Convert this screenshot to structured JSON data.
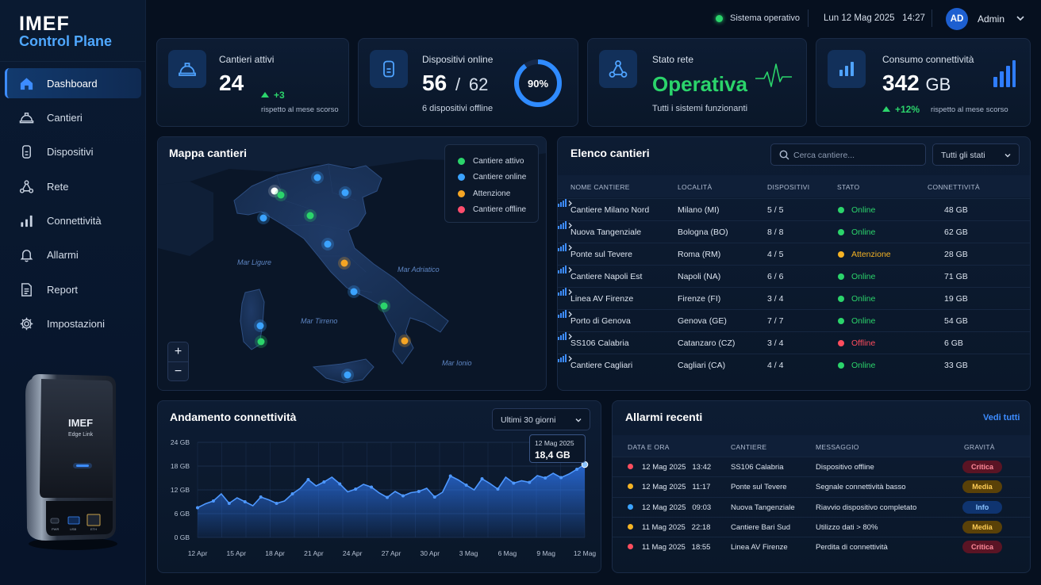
{
  "brand": {
    "name": "IMEF",
    "subtitle": "Control Plane"
  },
  "sidebar": {
    "items": [
      {
        "label": "Dashboard",
        "icon": "home-icon",
        "active": true
      },
      {
        "label": "Cantieri",
        "icon": "helmet-icon"
      },
      {
        "label": "Dispositivi",
        "icon": "device-icon"
      },
      {
        "label": "Rete",
        "icon": "network-icon"
      },
      {
        "label": "Connettività",
        "icon": "bars-icon"
      },
      {
        "label": "Allarmi",
        "icon": "bell-icon"
      },
      {
        "label": "Report",
        "icon": "report-icon"
      },
      {
        "label": "Impostazioni",
        "icon": "gear-icon"
      }
    ],
    "device_logo": "IMEF",
    "device_model": "Edge Link",
    "device_ports": [
      "PWR",
      "USB",
      "ETH"
    ]
  },
  "topbar": {
    "system_status": "Sistema operativo",
    "date": "Lun 12 Mag 2025",
    "time": "14:27",
    "avatar_initials": "AD",
    "user_name": "Admin"
  },
  "kpis": {
    "cantieri": {
      "label": "Cantieri attivi",
      "value": "24",
      "delta": "+3",
      "delta_note": "rispetto al mese scorso"
    },
    "dispositivi": {
      "label": "Dispositivi online",
      "value": "56",
      "separator": "/",
      "total": "62",
      "sub": "6 dispositivi offline",
      "gauge_label": "90%",
      "gauge_fraction": 0.9
    },
    "rete": {
      "label": "Stato rete",
      "value": "Operativa",
      "sub": "Tutti i sistemi funzionanti"
    },
    "consumo": {
      "label": "Consumo connettività",
      "value": "342",
      "unit": "GB",
      "delta": "+12%",
      "delta_note": "rispetto al mese scorso"
    }
  },
  "map": {
    "title": "Mappa cantieri",
    "legend": [
      {
        "label": "Cantiere attivo",
        "color": "#2bd46b"
      },
      {
        "label": "Cantiere online",
        "color": "#3ba3ff"
      },
      {
        "label": "Attenzione",
        "color": "#f5a524"
      },
      {
        "label": "Cantiere offline",
        "color": "#ff4d6d"
      }
    ],
    "zoom_in": "+",
    "zoom_out": "−",
    "seas": [
      "Mar Ligure",
      "Mar Adriatico",
      "Mar Tirreno",
      "Mar Ionio"
    ]
  },
  "sites": {
    "title": "Elenco cantieri",
    "search_placeholder": "Cerca cantiere...",
    "filter": "Tutti gli stati",
    "columns": [
      "NOME CANTIERE",
      "LOCALITÀ",
      "DISPOSITIVI",
      "STATO",
      "CONNETTIVITÀ"
    ],
    "rows": [
      {
        "name": "Cantiere Milano Nord",
        "location": "Milano (MI)",
        "devices": "5 / 5",
        "status": "Online",
        "status_color": "#2bd46b",
        "usage": "48 GB"
      },
      {
        "name": "Nuova Tangenziale",
        "location": "Bologna (BO)",
        "devices": "8 / 8",
        "status": "Online",
        "status_color": "#2bd46b",
        "usage": "62 GB"
      },
      {
        "name": "Ponte sul Tevere",
        "location": "Roma (RM)",
        "devices": "4 / 5",
        "status": "Attenzione",
        "status_color": "#f5b324",
        "usage": "28 GB"
      },
      {
        "name": "Cantiere Napoli Est",
        "location": "Napoli (NA)",
        "devices": "6 / 6",
        "status": "Online",
        "status_color": "#2bd46b",
        "usage": "71 GB"
      },
      {
        "name": "Linea AV Firenze",
        "location": "Firenze (FI)",
        "devices": "3 / 4",
        "status": "Online",
        "status_color": "#2bd46b",
        "usage": "19 GB"
      },
      {
        "name": "Porto di Genova",
        "location": "Genova (GE)",
        "devices": "7 / 7",
        "status": "Online",
        "status_color": "#2bd46b",
        "usage": "54 GB"
      },
      {
        "name": "SS106 Calabria",
        "location": "Catanzaro (CZ)",
        "devices": "3 / 4",
        "status": "Offline",
        "status_color": "#ff4d5e",
        "usage": "6 GB"
      },
      {
        "name": "Cantiere Cagliari",
        "location": "Cagliari (CA)",
        "devices": "4 / 4",
        "status": "Online",
        "status_color": "#2bd46b",
        "usage": "33 GB"
      }
    ]
  },
  "connectivity": {
    "title": "Andamento connettività",
    "range": "Ultimi 30 giorni",
    "tooltip_date": "12 Mag 2025",
    "tooltip_value": "18,4 GB"
  },
  "chart_data": {
    "type": "area",
    "xlabel": "",
    "ylabel": "",
    "ylim": [
      0,
      24
    ],
    "y_ticks": [
      "0 GB",
      "6 GB",
      "12 GB",
      "18 GB",
      "24 GB"
    ],
    "x_ticks": [
      "12 Apr",
      "15 Apr",
      "18 Apr",
      "21 Apr",
      "24 Apr",
      "27 Apr",
      "30 Apr",
      "3 Mag",
      "6 Mag",
      "9 Mag",
      "12 Mag"
    ],
    "values": [
      7.5,
      8.5,
      9.2,
      11.0,
      8.6,
      10.0,
      9.0,
      8.0,
      10.2,
      9.5,
      8.6,
      9.2,
      11.0,
      12.4,
      14.6,
      13.0,
      14.0,
      15.2,
      13.5,
      11.5,
      12.2,
      13.4,
      12.7,
      11.2,
      10.1,
      11.6,
      10.5,
      11.3,
      11.6,
      12.4,
      10.2,
      11.4,
      15.5,
      14.5,
      13.2,
      12.0,
      14.8,
      13.6,
      12.2,
      15.2,
      13.7,
      14.3,
      13.9,
      15.6,
      15.0,
      16.2,
      15.1,
      16.0,
      17.2,
      18.4
    ],
    "color": "#2f7dff"
  },
  "alarms": {
    "title": "Allarmi recenti",
    "view_all": "Vedi tutti",
    "columns": [
      "DATA E ORA",
      "CANTIERE",
      "MESSAGGIO",
      "GRAVITÀ"
    ],
    "rows": [
      {
        "datetime": "12 Mag 2025   13:42",
        "site": "SS106 Calabria",
        "message": "Dispositivo offline",
        "severity": "Critica",
        "dot": "#ff4d5e",
        "badge_bg": "#5a1424",
        "badge_fg": "#ff8b9a"
      },
      {
        "datetime": "12 Mag 2025   11:17",
        "site": "Ponte sul Tevere",
        "message": "Segnale connettività basso",
        "severity": "Media",
        "dot": "#f5b324",
        "badge_bg": "#5a4108",
        "badge_fg": "#ffcc55"
      },
      {
        "datetime": "12 Mag 2025   09:03",
        "site": "Nuova Tangenziale",
        "message": "Riavvio dispositivo completato",
        "severity": "Info",
        "dot": "#3ba3ff",
        "badge_bg": "#0f3470",
        "badge_fg": "#8cc4ff"
      },
      {
        "datetime": "11 Mag 2025   22:18",
        "site": "Cantiere Bari Sud",
        "message": "Utilizzo dati > 80%",
        "severity": "Media",
        "dot": "#f5b324",
        "badge_bg": "#5a4108",
        "badge_fg": "#ffcc55"
      },
      {
        "datetime": "11 Mag 2025   18:55",
        "site": "Linea AV Firenze",
        "message": "Perdita di connettività",
        "severity": "Critica",
        "dot": "#ff4d5e",
        "badge_bg": "#5a1424",
        "badge_fg": "#ff8b9a"
      }
    ]
  }
}
